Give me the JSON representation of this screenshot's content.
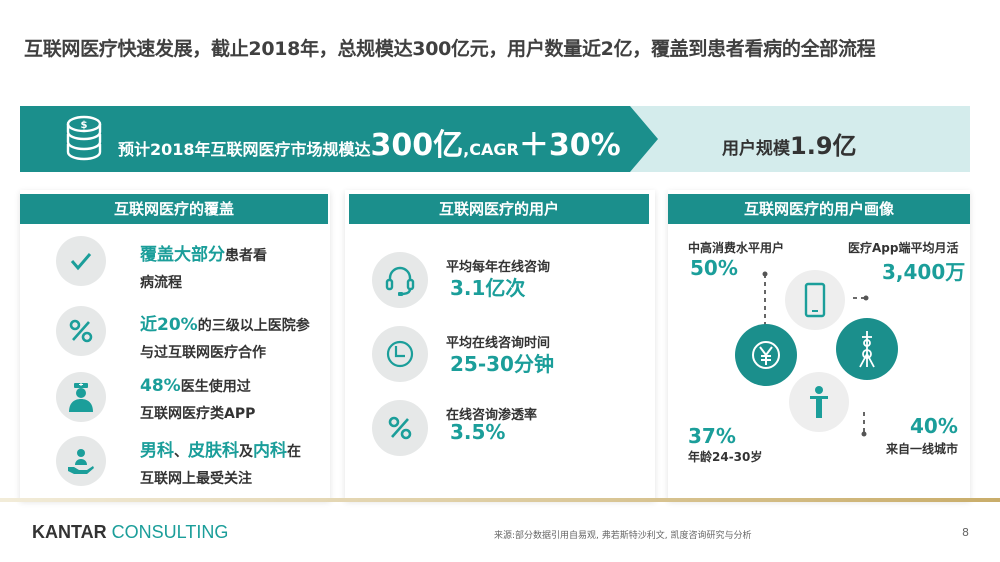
{
  "title": "互联网医疗快速发展，截止2018年，总规模达300亿元，用户数量近2亿，覆盖到患者看病的全部流程",
  "banner": {
    "left_prefix": "预计2018年互联网医疗市场规模达",
    "market_value": "300亿",
    "cagr_label": ",CAGR",
    "cagr_value": "＋30%",
    "right_label": "用户规模",
    "right_value": "1.9亿"
  },
  "panel1": {
    "header": "互联网医疗的覆盖",
    "items": [
      {
        "icon": "check-icon",
        "highlight": "覆盖大部分",
        "text": "患者看",
        "line2": "病流程"
      },
      {
        "icon": "percent-icon",
        "highlight": "近20%",
        "text": "的三级以上医院参",
        "line2": "与过互联网医疗合作"
      },
      {
        "icon": "doctor-icon",
        "highlight": "48%",
        "text": "医生使用过",
        "line2": "互联网医疗类APP"
      },
      {
        "icon": "hand-person-icon",
        "h1": "男科",
        "sep1": "、",
        "h2": "皮肤科",
        "sep2": "及",
        "h3": "内科",
        "text": "在",
        "line2": "互联网上最受关注"
      }
    ]
  },
  "panel2": {
    "header": "互联网医疗的用户",
    "items": [
      {
        "icon": "headset-icon",
        "label": "平均每年在线咨询",
        "value": "3.1亿次"
      },
      {
        "icon": "clock-icon",
        "label": "平均在线咨询时间",
        "value": "25-30分钟"
      },
      {
        "icon": "percent-icon",
        "label": "在线咨询渗透率",
        "value": "3.5%"
      }
    ]
  },
  "panel3": {
    "header": "互联网医疗的用户画像",
    "stats": [
      {
        "label": "中高消费水平用户",
        "value": "50%",
        "icon": "yen-icon"
      },
      {
        "label": "医疗App端平均月活",
        "value": "3,400万",
        "icon": "phone-icon"
      },
      {
        "label": "年龄24-30岁",
        "value": "37%",
        "icon": "person-icon"
      },
      {
        "label": "来自一线城市",
        "value": "40%",
        "icon": "tower-icon"
      }
    ]
  },
  "footer": {
    "logo_bold": "KANTAR",
    "logo_light": "CONSULTING",
    "source": "来源:部分数据引用自易观, 弗若斯特沙利文, 凯度咨询研究与分析",
    "page": "8"
  },
  "colors": {
    "teal": "#1b8f8c",
    "accent": "#1b9e9a",
    "light_teal": "#d4ecec"
  }
}
